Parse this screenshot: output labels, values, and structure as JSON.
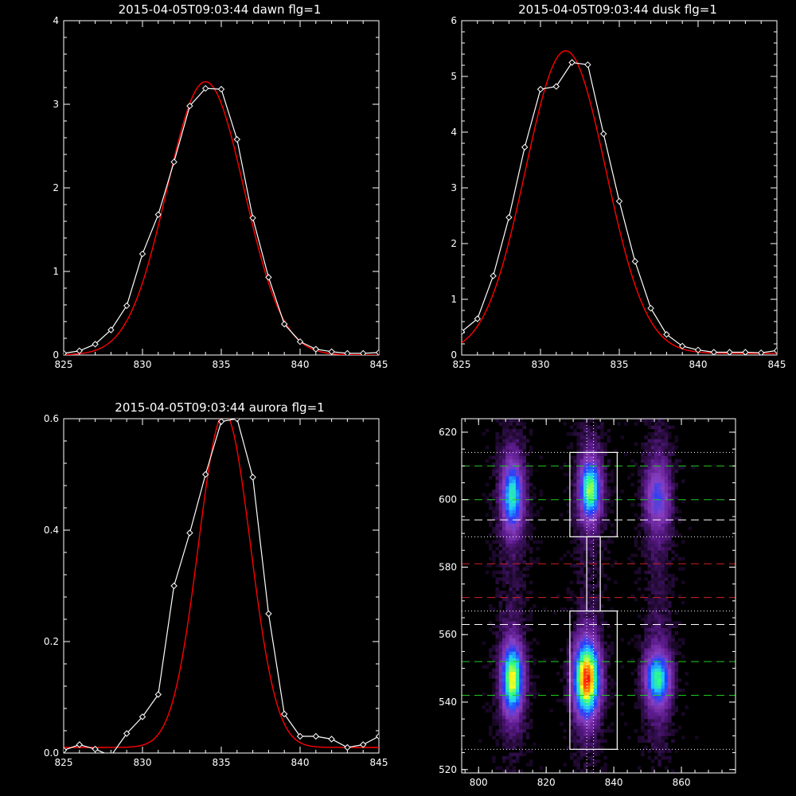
{
  "colors": {
    "background": "#000000",
    "axes": "#ffffff",
    "data_line": "#ffffff",
    "fit_line": "#ff0000"
  },
  "chart_data": [
    {
      "type": "line",
      "title": "2015-04-05T09:03:44 dawn flg=1",
      "xlim": [
        825,
        845
      ],
      "ylim": [
        0,
        4
      ],
      "xticks": [
        825,
        830,
        835,
        840,
        845
      ],
      "yticks": [
        0,
        1,
        2,
        3,
        4
      ],
      "series": [
        {
          "role": "data",
          "marker": "diamond",
          "x": [
            825,
            826,
            827,
            828,
            829,
            830,
            831,
            832,
            833,
            834,
            835,
            836,
            837,
            838,
            839,
            840,
            841,
            842,
            843,
            844,
            845
          ],
          "y": [
            0.02,
            0.05,
            0.13,
            0.3,
            0.59,
            1.21,
            1.68,
            2.31,
            2.98,
            3.19,
            3.18,
            2.58,
            1.64,
            0.93,
            0.37,
            0.16,
            0.07,
            0.04,
            0.02,
            0.02,
            0.03
          ]
        },
        {
          "role": "fit",
          "gaussian": {
            "amplitude": 3.27,
            "center": 834.0,
            "sigma": 2.45,
            "baseline": 0.0
          }
        }
      ]
    },
    {
      "type": "line",
      "title": "2015-04-05T09:03:44 dusk flg=1",
      "xlim": [
        825,
        845
      ],
      "ylim": [
        0,
        6
      ],
      "xticks": [
        825,
        830,
        835,
        840,
        845
      ],
      "yticks": [
        0,
        1,
        2,
        3,
        4,
        5,
        6
      ],
      "series": [
        {
          "role": "data",
          "marker": "diamond",
          "x": [
            825,
            826,
            827,
            828,
            829,
            830,
            831,
            832,
            833,
            834,
            835,
            836,
            837,
            838,
            839,
            840,
            841,
            842,
            843,
            844,
            845
          ],
          "y": [
            0.42,
            0.65,
            1.42,
            2.47,
            3.73,
            4.77,
            4.82,
            5.25,
            5.21,
            3.97,
            2.76,
            1.68,
            0.84,
            0.37,
            0.16,
            0.09,
            0.05,
            0.05,
            0.05,
            0.04,
            0.08
          ]
        },
        {
          "role": "fit",
          "gaussian": {
            "amplitude": 5.43,
            "center": 831.6,
            "sigma": 2.55,
            "baseline": 0.03
          }
        }
      ]
    },
    {
      "type": "line",
      "title": "2015-04-05T09:03:44 aurora flg=1",
      "xlim": [
        825,
        845
      ],
      "ylim": [
        0,
        0.6
      ],
      "xticks": [
        825,
        830,
        835,
        840,
        845
      ],
      "yticks": [
        0.0,
        0.2,
        0.4,
        0.6
      ],
      "series": [
        {
          "role": "data",
          "marker": "diamond",
          "x": [
            825,
            826,
            827,
            828,
            829,
            830,
            831,
            832,
            833,
            834,
            835,
            836,
            837,
            838,
            839,
            840,
            841,
            842,
            843,
            844,
            845
          ],
          "y": [
            0.005,
            0.015,
            0.007,
            -0.005,
            0.035,
            0.065,
            0.105,
            0.3,
            0.395,
            0.5,
            0.595,
            0.6,
            0.495,
            0.25,
            0.07,
            0.03,
            0.03,
            0.025,
            0.01,
            0.015,
            0.03
          ]
        },
        {
          "role": "fit",
          "gaussian": {
            "amplitude": 0.6,
            "center": 835.2,
            "sigma": 1.65,
            "baseline": 0.01
          }
        }
      ]
    },
    {
      "type": "heatmap",
      "title": "",
      "xlim": [
        795,
        876
      ],
      "ylim": [
        519,
        624
      ],
      "xticks": [
        800,
        820,
        840,
        860
      ],
      "yticks": [
        520,
        540,
        560,
        580,
        600,
        620
      ],
      "colormap": [
        "#000000",
        "#5a1a8a",
        "#8a3fc0",
        "#2040ff",
        "#20c8ff",
        "#30ff80",
        "#ffff20",
        "#ff8000",
        "#ff0000"
      ],
      "blobs": [
        {
          "x": 810,
          "y": 601,
          "sx": 2.0,
          "sy": 6.5,
          "peak": 0.46
        },
        {
          "x": 833,
          "y": 603,
          "sx": 2.0,
          "sy": 5.5,
          "peak": 0.58
        },
        {
          "x": 853,
          "y": 601,
          "sx": 2.5,
          "sy": 6.0,
          "peak": 0.22
        },
        {
          "x": 810,
          "y": 547,
          "sx": 2.0,
          "sy": 6.5,
          "peak": 0.66
        },
        {
          "x": 832,
          "y": 547,
          "sx": 2.5,
          "sy": 7.0,
          "peak": 0.85
        },
        {
          "x": 853,
          "y": 547,
          "sx": 2.5,
          "sy": 5.0,
          "peak": 0.5
        }
      ],
      "hlines": [
        {
          "y": 610,
          "color": "#20c820",
          "style": "dashed"
        },
        {
          "y": 600,
          "color": "#20c820",
          "style": "dashed"
        },
        {
          "y": 594,
          "color": "#ffffff",
          "style": "dashed"
        },
        {
          "y": 581,
          "color": "#d02020",
          "style": "dashed"
        },
        {
          "y": 571,
          "color": "#d02020",
          "style": "dashed"
        },
        {
          "y": 563,
          "color": "#ffffff",
          "style": "dashed"
        },
        {
          "y": 552,
          "color": "#20c820",
          "style": "dashed"
        },
        {
          "y": 542,
          "color": "#20c820",
          "style": "dashed"
        },
        {
          "y": 614,
          "color": "#ffffff",
          "style": "dotted"
        },
        {
          "y": 589,
          "color": "#ffffff",
          "style": "dotted"
        },
        {
          "y": 567,
          "color": "#ffffff",
          "style": "dotted"
        },
        {
          "y": 526,
          "color": "#ffffff",
          "style": "dotted"
        }
      ],
      "vlines": [
        {
          "x": 832,
          "color": "#ffffff",
          "style": "dotted"
        },
        {
          "x": 834,
          "color": "#ffffff",
          "style": "dotted"
        }
      ],
      "boxes": [
        {
          "x0": 827,
          "x1": 841,
          "y0": 589,
          "y1": 614
        },
        {
          "x0": 827,
          "x1": 841,
          "y0": 526,
          "y1": 567
        },
        {
          "x0": 832,
          "x1": 836,
          "y0": 567,
          "y1": 589
        }
      ]
    }
  ]
}
